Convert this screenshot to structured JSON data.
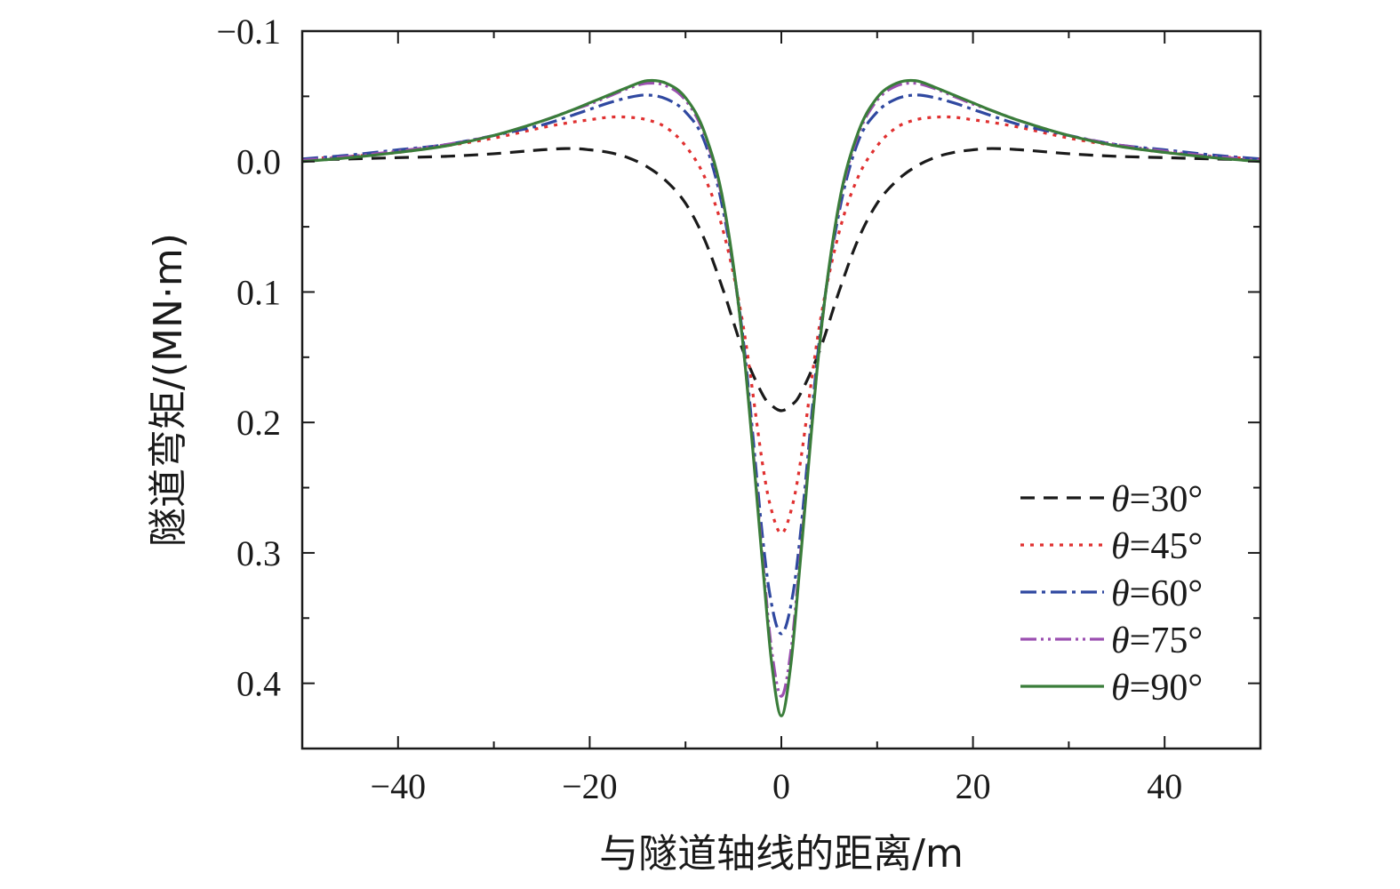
{
  "chart_data": {
    "type": "line",
    "title": "",
    "xlabel": "与隧道轴线的距离/m",
    "ylabel": "隧道弯矩/(MN·m)",
    "xlim": [
      -50,
      50
    ],
    "ylim": [
      -0.1,
      0.45
    ],
    "y_inverted": true,
    "x_ticks": [
      -40,
      -20,
      0,
      20,
      40
    ],
    "x_tick_labels": [
      "−40",
      "−20",
      "0",
      "20",
      "40"
    ],
    "y_ticks": [
      -0.1,
      0.0,
      0.1,
      0.2,
      0.3,
      0.4
    ],
    "y_tick_labels": [
      "−0.1",
      "0.0",
      "0.1",
      "0.2",
      "0.3",
      "0.4"
    ],
    "grid": false,
    "legend_position": "bottom-right",
    "x": [
      -50,
      -45,
      -40,
      -35,
      -30,
      -25,
      -22,
      -20,
      -18,
      -16,
      -14,
      -12,
      -10,
      -8,
      -6,
      -4,
      -2,
      -1,
      0,
      1,
      2,
      4,
      6,
      8,
      10,
      12,
      14,
      16,
      18,
      20,
      22,
      25,
      30,
      35,
      40,
      45,
      50
    ],
    "series": [
      {
        "name": "θ=30°",
        "color": "#1a1a1a",
        "dash": "16,10",
        "values": [
          -0.001,
          -0.002,
          -0.003,
          -0.004,
          -0.006,
          -0.009,
          -0.01,
          -0.009,
          -0.007,
          -0.003,
          0.004,
          0.015,
          0.032,
          0.06,
          0.1,
          0.145,
          0.178,
          0.187,
          0.191,
          0.187,
          0.178,
          0.145,
          0.1,
          0.06,
          0.032,
          0.015,
          0.004,
          -0.003,
          -0.007,
          -0.009,
          -0.01,
          -0.009,
          -0.006,
          -0.004,
          -0.003,
          -0.002,
          -0.001
        ]
      },
      {
        "name": "θ=45°",
        "color": "#e03030",
        "dash": "4,7",
        "values": [
          -0.002,
          -0.004,
          -0.007,
          -0.012,
          -0.018,
          -0.026,
          -0.03,
          -0.032,
          -0.034,
          -0.034,
          -0.032,
          -0.026,
          -0.012,
          0.012,
          0.055,
          0.125,
          0.23,
          0.268,
          0.285,
          0.268,
          0.23,
          0.125,
          0.055,
          0.012,
          -0.012,
          -0.026,
          -0.032,
          -0.034,
          -0.034,
          -0.032,
          -0.03,
          -0.026,
          -0.018,
          -0.012,
          -0.007,
          -0.004,
          -0.002
        ]
      },
      {
        "name": "θ=60°",
        "color": "#2f48a0",
        "dash": "18,6,4,6",
        "values": [
          -0.002,
          -0.005,
          -0.009,
          -0.013,
          -0.02,
          -0.028,
          -0.035,
          -0.04,
          -0.045,
          -0.049,
          -0.051,
          -0.048,
          -0.038,
          -0.015,
          0.04,
          0.135,
          0.285,
          0.34,
          0.362,
          0.34,
          0.285,
          0.135,
          0.04,
          -0.015,
          -0.038,
          -0.048,
          -0.051,
          -0.049,
          -0.045,
          -0.04,
          -0.035,
          -0.028,
          -0.02,
          -0.013,
          -0.009,
          -0.005,
          -0.002
        ]
      },
      {
        "name": "θ=75°",
        "color": "#9b4fb0",
        "dash": "18,5,3,5,3,5",
        "values": [
          -0.001,
          -0.004,
          -0.008,
          -0.013,
          -0.02,
          -0.031,
          -0.039,
          -0.044,
          -0.05,
          -0.056,
          -0.06,
          -0.058,
          -0.047,
          -0.02,
          0.035,
          0.14,
          0.3,
          0.375,
          0.41,
          0.375,
          0.3,
          0.14,
          0.035,
          -0.02,
          -0.047,
          -0.058,
          -0.06,
          -0.056,
          -0.05,
          -0.044,
          -0.039,
          -0.031,
          -0.02,
          -0.013,
          -0.008,
          -0.004,
          -0.001
        ]
      },
      {
        "name": "θ=90°",
        "color": "#3a7d3a",
        "dash": "",
        "values": [
          0.0,
          -0.003,
          -0.007,
          -0.012,
          -0.02,
          -0.031,
          -0.039,
          -0.045,
          -0.051,
          -0.057,
          -0.062,
          -0.06,
          -0.049,
          -0.022,
          0.033,
          0.14,
          0.305,
          0.385,
          0.425,
          0.385,
          0.305,
          0.14,
          0.033,
          -0.022,
          -0.049,
          -0.06,
          -0.062,
          -0.057,
          -0.051,
          -0.045,
          -0.039,
          -0.031,
          -0.02,
          -0.012,
          -0.007,
          -0.003,
          0.0
        ]
      }
    ]
  }
}
